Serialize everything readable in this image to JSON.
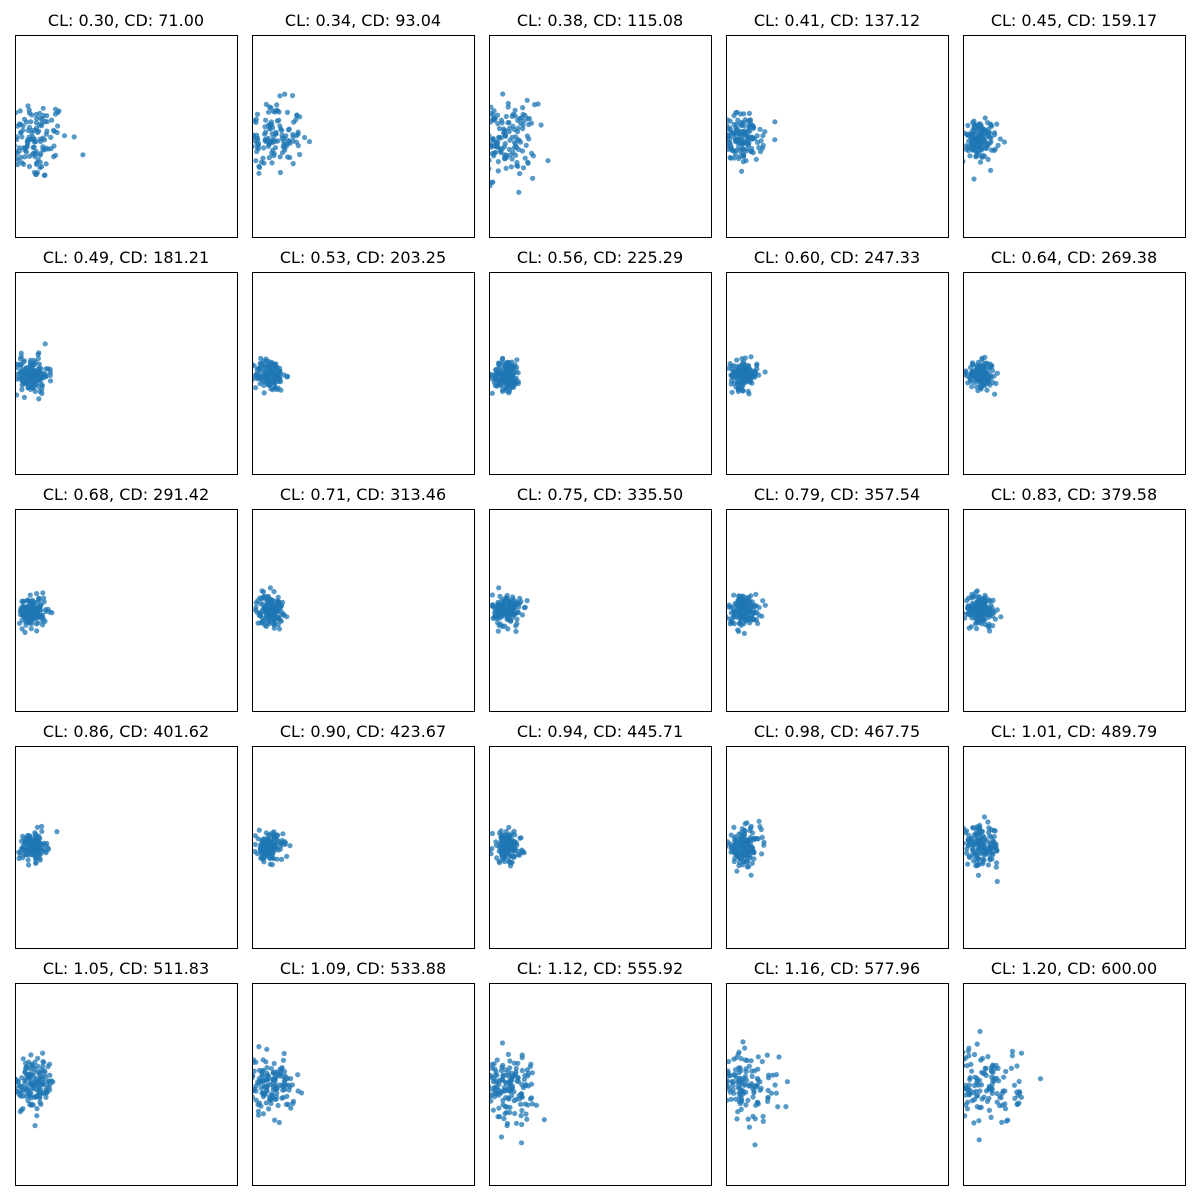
{
  "chart_data": {
    "type": "scatter",
    "layout": "grid",
    "rows": 5,
    "cols": 5,
    "xlim": [
      0,
      1
    ],
    "ylim": [
      0,
      1
    ],
    "grid": false,
    "ticks": false,
    "legend": "none",
    "marker_color": "#1f77b4",
    "marker_alpha": 0.75,
    "points_per_panel": 150,
    "panels": [
      {
        "title": "CL: 0.30, CD: 71.00",
        "center": [
          0.07,
          0.48
        ],
        "spread": [
          0.085,
          0.1
        ]
      },
      {
        "title": "CL: 0.34, CD: 93.04",
        "center": [
          0.08,
          0.49
        ],
        "spread": [
          0.075,
          0.09
        ]
      },
      {
        "title": "CL: 0.38, CD: 115.08",
        "center": [
          0.07,
          0.48
        ],
        "spread": [
          0.07,
          0.09
        ]
      },
      {
        "title": "CL: 0.41, CD: 137.12",
        "center": [
          0.07,
          0.49
        ],
        "spread": [
          0.05,
          0.06
        ]
      },
      {
        "title": "CL: 0.45, CD: 159.17",
        "center": [
          0.07,
          0.48
        ],
        "spread": [
          0.04,
          0.05
        ]
      },
      {
        "title": "CL: 0.49, CD: 181.21",
        "center": [
          0.07,
          0.49
        ],
        "spread": [
          0.04,
          0.045
        ]
      },
      {
        "title": "CL: 0.53, CD: 203.25",
        "center": [
          0.08,
          0.49
        ],
        "spread": [
          0.035,
          0.04
        ]
      },
      {
        "title": "CL: 0.56, CD: 225.29",
        "center": [
          0.08,
          0.49
        ],
        "spread": [
          0.032,
          0.038
        ]
      },
      {
        "title": "CL: 0.60, CD: 247.33",
        "center": [
          0.08,
          0.49
        ],
        "spread": [
          0.03,
          0.035
        ]
      },
      {
        "title": "CL: 0.64, CD: 269.38",
        "center": [
          0.08,
          0.49
        ],
        "spread": [
          0.03,
          0.033
        ]
      },
      {
        "title": "CL: 0.68, CD: 291.42",
        "center": [
          0.08,
          0.49
        ],
        "spread": [
          0.03,
          0.038
        ]
      },
      {
        "title": "CL: 0.71, CD: 313.46",
        "center": [
          0.08,
          0.5
        ],
        "spread": [
          0.03,
          0.038
        ]
      },
      {
        "title": "CL: 0.75, CD: 335.50",
        "center": [
          0.08,
          0.5
        ],
        "spread": [
          0.032,
          0.04
        ]
      },
      {
        "title": "CL: 0.79, CD: 357.54",
        "center": [
          0.08,
          0.5
        ],
        "spread": [
          0.035,
          0.04
        ]
      },
      {
        "title": "CL: 0.83, CD: 379.58",
        "center": [
          0.08,
          0.5
        ],
        "spread": [
          0.035,
          0.04
        ]
      },
      {
        "title": "CL: 0.86, CD: 401.62",
        "center": [
          0.08,
          0.5
        ],
        "spread": [
          0.03,
          0.035
        ]
      },
      {
        "title": "CL: 0.90, CD: 423.67",
        "center": [
          0.08,
          0.5
        ],
        "spread": [
          0.03,
          0.035
        ]
      },
      {
        "title": "CL: 0.94, CD: 445.71",
        "center": [
          0.08,
          0.5
        ],
        "spread": [
          0.032,
          0.038
        ]
      },
      {
        "title": "CL: 0.98, CD: 467.75",
        "center": [
          0.08,
          0.5
        ],
        "spread": [
          0.038,
          0.045
        ]
      },
      {
        "title": "CL: 1.01, CD: 489.79",
        "center": [
          0.08,
          0.5
        ],
        "spread": [
          0.045,
          0.05
        ]
      },
      {
        "title": "CL: 1.05, CD: 511.83",
        "center": [
          0.08,
          0.5
        ],
        "spread": [
          0.05,
          0.06
        ]
      },
      {
        "title": "CL: 1.09, CD: 533.88",
        "center": [
          0.08,
          0.49
        ],
        "spread": [
          0.055,
          0.065
        ]
      },
      {
        "title": "CL: 1.12, CD: 555.92",
        "center": [
          0.08,
          0.49
        ],
        "spread": [
          0.065,
          0.08
        ]
      },
      {
        "title": "CL: 1.16, CD: 577.96",
        "center": [
          0.08,
          0.49
        ],
        "spread": [
          0.075,
          0.09
        ]
      },
      {
        "title": "CL: 1.20, CD: 600.00",
        "center": [
          0.09,
          0.49
        ],
        "spread": [
          0.085,
          0.1
        ]
      }
    ]
  }
}
